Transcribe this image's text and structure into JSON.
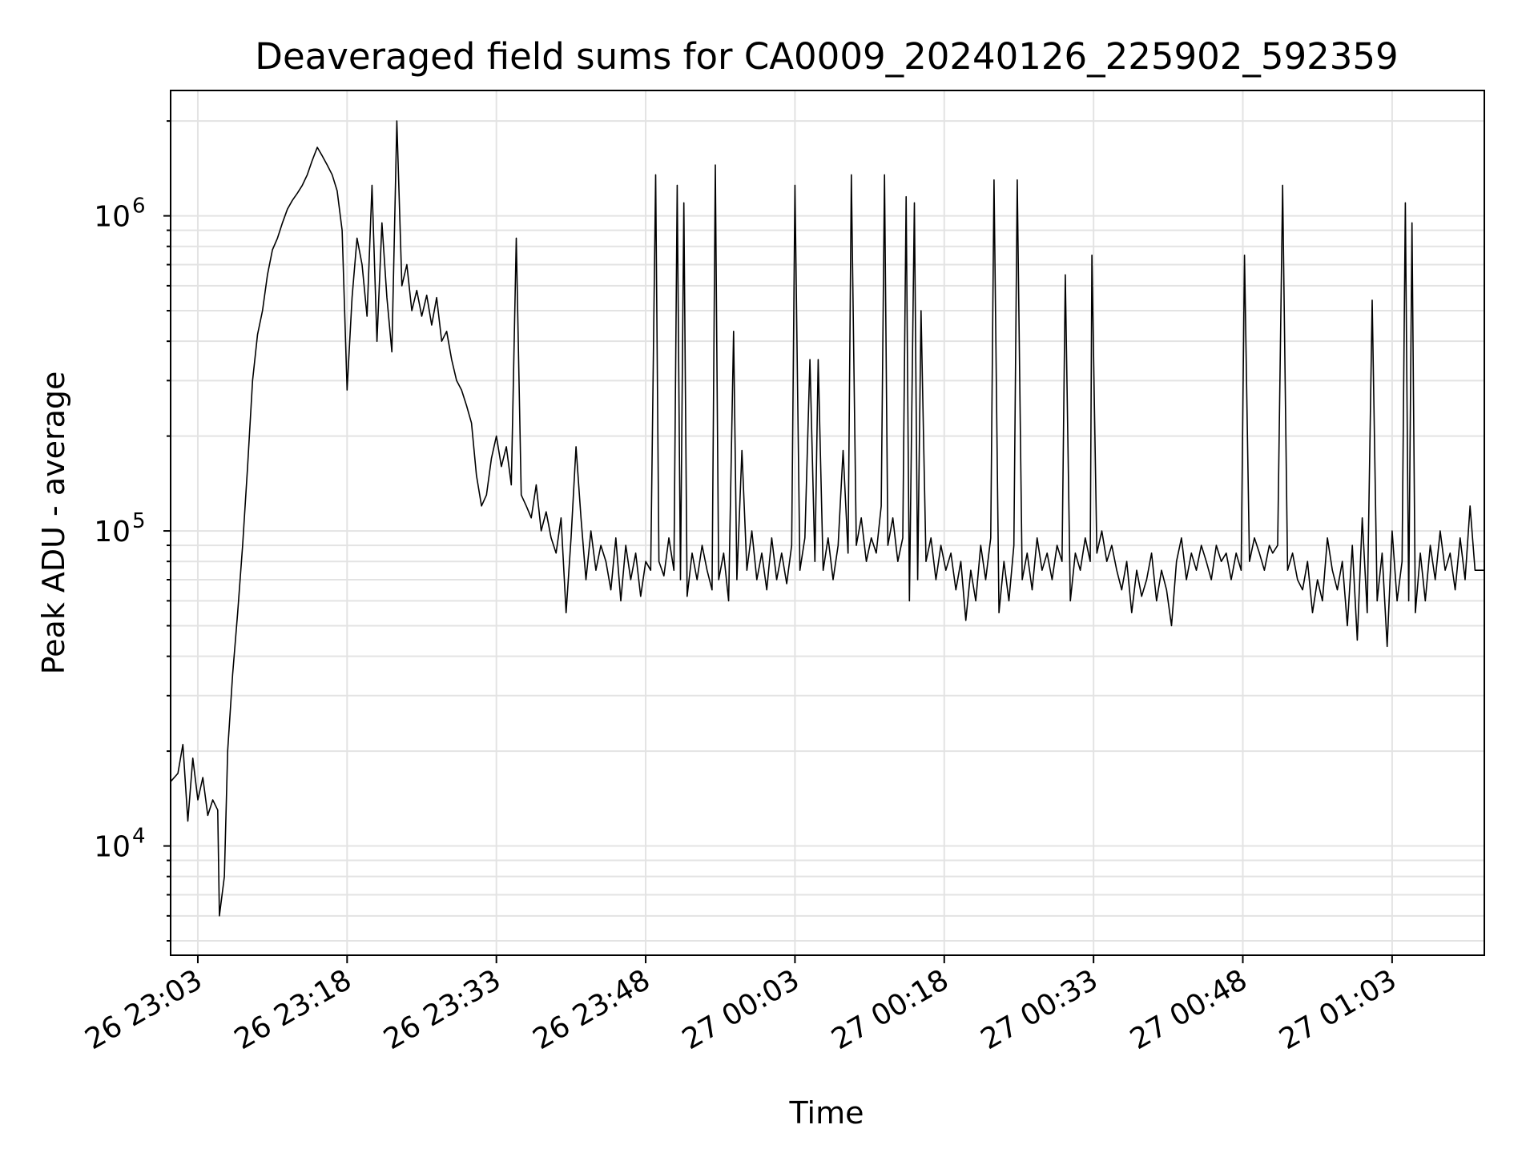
{
  "chart_data": {
    "type": "line",
    "title": "Deaveraged field sums for CA0009_20240126_225902_592359",
    "xlabel": "Time",
    "ylabel": "Peak ADU - average",
    "x_ticks": [
      "26 23:03",
      "26 23:18",
      "26 23:33",
      "26 23:48",
      "27 00:03",
      "27 00:18",
      "27 00:33",
      "27 00:48",
      "27 01:03"
    ],
    "y_scale": "log",
    "y_ticks": [
      {
        "base": "10",
        "exp": "4",
        "value": 10000
      },
      {
        "base": "10",
        "exp": "5",
        "value": 100000
      },
      {
        "base": "10",
        "exp": "6",
        "value": 1000000
      }
    ],
    "xlim": [
      "2024-01-26 23:00:16",
      "2024-01-27 01:12:16"
    ],
    "ylim": [
      4500,
      2500000
    ],
    "grid": true,
    "line_color": "#000000",
    "series": [
      {
        "points": [
          [
            "23:00:16",
            16000
          ],
          [
            "23:01:00",
            17000
          ],
          [
            "23:01:30",
            21000
          ],
          [
            "23:02:00",
            12000
          ],
          [
            "23:02:30",
            19000
          ],
          [
            "23:03:00",
            14000
          ],
          [
            "23:03:30",
            16500
          ],
          [
            "23:04:00",
            12500
          ],
          [
            "23:04:30",
            14000
          ],
          [
            "23:05:00",
            13000
          ],
          [
            "23:05:10",
            6000
          ],
          [
            "23:05:40",
            8000
          ],
          [
            "23:06:00",
            20000
          ],
          [
            "23:06:30",
            35000
          ],
          [
            "23:07:00",
            55000
          ],
          [
            "23:07:30",
            90000
          ],
          [
            "23:08:00",
            160000
          ],
          [
            "23:08:30",
            300000
          ],
          [
            "23:09:00",
            420000
          ],
          [
            "23:09:30",
            500000
          ],
          [
            "23:10:00",
            650000
          ],
          [
            "23:10:30",
            780000
          ],
          [
            "23:11:00",
            850000
          ],
          [
            "23:11:30",
            950000
          ],
          [
            "23:12:00",
            1050000
          ],
          [
            "23:12:30",
            1120000
          ],
          [
            "23:13:00",
            1180000
          ],
          [
            "23:13:30",
            1250000
          ],
          [
            "23:14:00",
            1350000
          ],
          [
            "23:14:30",
            1500000
          ],
          [
            "23:15:00",
            1650000
          ],
          [
            "23:15:30",
            1550000
          ],
          [
            "23:16:00",
            1450000
          ],
          [
            "23:16:30",
            1350000
          ],
          [
            "23:17:00",
            1200000
          ],
          [
            "23:17:30",
            900000
          ],
          [
            "23:18:00",
            280000
          ],
          [
            "23:18:30",
            550000
          ],
          [
            "23:19:00",
            850000
          ],
          [
            "23:19:30",
            700000
          ],
          [
            "23:20:00",
            480000
          ],
          [
            "23:20:30",
            1250000
          ],
          [
            "23:21:00",
            400000
          ],
          [
            "23:21:30",
            950000
          ],
          [
            "23:22:00",
            550000
          ],
          [
            "23:22:30",
            370000
          ],
          [
            "23:23:00",
            2000000
          ],
          [
            "23:23:30",
            600000
          ],
          [
            "23:24:00",
            700000
          ],
          [
            "23:24:30",
            500000
          ],
          [
            "23:25:00",
            580000
          ],
          [
            "23:25:30",
            480000
          ],
          [
            "23:26:00",
            560000
          ],
          [
            "23:26:30",
            450000
          ],
          [
            "23:27:00",
            550000
          ],
          [
            "23:27:30",
            400000
          ],
          [
            "23:28:00",
            430000
          ],
          [
            "23:28:30",
            350000
          ],
          [
            "23:29:00",
            300000
          ],
          [
            "23:29:30",
            280000
          ],
          [
            "23:30:00",
            250000
          ],
          [
            "23:30:30",
            220000
          ],
          [
            "23:31:00",
            150000
          ],
          [
            "23:31:30",
            120000
          ],
          [
            "23:32:00",
            130000
          ],
          [
            "23:32:30",
            170000
          ],
          [
            "23:33:00",
            200000
          ],
          [
            "23:33:30",
            160000
          ],
          [
            "23:34:00",
            185000
          ],
          [
            "23:34:30",
            140000
          ],
          [
            "23:35:00",
            850000
          ],
          [
            "23:35:30",
            130000
          ],
          [
            "23:36:00",
            120000
          ],
          [
            "23:36:30",
            110000
          ],
          [
            "23:37:00",
            140000
          ],
          [
            "23:37:30",
            100000
          ],
          [
            "23:38:00",
            115000
          ],
          [
            "23:38:30",
            95000
          ],
          [
            "23:39:00",
            85000
          ],
          [
            "23:39:30",
            110000
          ],
          [
            "23:40:00",
            55000
          ],
          [
            "23:40:30",
            95000
          ],
          [
            "23:41:00",
            185000
          ],
          [
            "23:41:30",
            110000
          ],
          [
            "23:42:00",
            70000
          ],
          [
            "23:42:30",
            100000
          ],
          [
            "23:43:00",
            75000
          ],
          [
            "23:43:30",
            90000
          ],
          [
            "23:44:00",
            80000
          ],
          [
            "23:44:30",
            65000
          ],
          [
            "23:45:00",
            95000
          ],
          [
            "23:45:30",
            60000
          ],
          [
            "23:46:00",
            90000
          ],
          [
            "23:46:30",
            70000
          ],
          [
            "23:47:00",
            85000
          ],
          [
            "23:47:30",
            62000
          ],
          [
            "23:48:00",
            80000
          ],
          [
            "23:48:30",
            75000
          ],
          [
            "23:49:00",
            1350000
          ],
          [
            "23:49:20",
            80000
          ],
          [
            "23:49:50",
            72000
          ],
          [
            "23:50:20",
            95000
          ],
          [
            "23:50:50",
            75000
          ],
          [
            "23:51:10",
            1250000
          ],
          [
            "23:51:30",
            70000
          ],
          [
            "23:51:50",
            1100000
          ],
          [
            "23:52:10",
            62000
          ],
          [
            "23:52:40",
            85000
          ],
          [
            "23:53:10",
            70000
          ],
          [
            "23:53:40",
            90000
          ],
          [
            "23:54:10",
            75000
          ],
          [
            "23:54:40",
            65000
          ],
          [
            "23:55:00",
            1450000
          ],
          [
            "23:55:20",
            70000
          ],
          [
            "23:55:50",
            85000
          ],
          [
            "23:56:20",
            60000
          ],
          [
            "23:56:50",
            430000
          ],
          [
            "23:57:10",
            70000
          ],
          [
            "23:57:40",
            180000
          ],
          [
            "23:58:10",
            75000
          ],
          [
            "23:58:40",
            100000
          ],
          [
            "23:59:10",
            70000
          ],
          [
            "23:59:40",
            85000
          ],
          [
            "00:00:10",
            65000
          ],
          [
            "00:00:40",
            95000
          ],
          [
            "00:01:10",
            70000
          ],
          [
            "00:01:40",
            85000
          ],
          [
            "00:02:10",
            68000
          ],
          [
            "00:02:40",
            90000
          ],
          [
            "00:03:00",
            1250000
          ],
          [
            "00:03:30",
            75000
          ],
          [
            "00:04:00",
            95000
          ],
          [
            "00:04:30",
            350000
          ],
          [
            "00:05:00",
            80000
          ],
          [
            "00:05:20",
            350000
          ],
          [
            "00:05:50",
            75000
          ],
          [
            "00:06:20",
            95000
          ],
          [
            "00:06:50",
            70000
          ],
          [
            "00:07:20",
            90000
          ],
          [
            "00:07:50",
            180000
          ],
          [
            "00:08:20",
            85000
          ],
          [
            "00:08:40",
            1350000
          ],
          [
            "00:09:10",
            90000
          ],
          [
            "00:09:40",
            110000
          ],
          [
            "00:10:10",
            80000
          ],
          [
            "00:10:40",
            95000
          ],
          [
            "00:11:10",
            85000
          ],
          [
            "00:11:40",
            120000
          ],
          [
            "00:12:00",
            1350000
          ],
          [
            "00:12:20",
            90000
          ],
          [
            "00:12:50",
            110000
          ],
          [
            "00:13:20",
            80000
          ],
          [
            "00:13:50",
            95000
          ],
          [
            "00:14:10",
            1150000
          ],
          [
            "00:14:30",
            60000
          ],
          [
            "00:15:00",
            1100000
          ],
          [
            "00:15:20",
            70000
          ],
          [
            "00:15:40",
            500000
          ],
          [
            "00:16:10",
            80000
          ],
          [
            "00:16:40",
            95000
          ],
          [
            "00:17:10",
            70000
          ],
          [
            "00:17:40",
            90000
          ],
          [
            "00:18:10",
            75000
          ],
          [
            "00:18:40",
            85000
          ],
          [
            "00:19:10",
            65000
          ],
          [
            "00:19:40",
            80000
          ],
          [
            "00:20:10",
            52000
          ],
          [
            "00:20:40",
            75000
          ],
          [
            "00:21:10",
            60000
          ],
          [
            "00:21:40",
            90000
          ],
          [
            "00:22:10",
            70000
          ],
          [
            "00:22:40",
            95000
          ],
          [
            "00:23:00",
            1300000
          ],
          [
            "00:23:30",
            55000
          ],
          [
            "00:24:00",
            80000
          ],
          [
            "00:24:30",
            60000
          ],
          [
            "00:25:00",
            90000
          ],
          [
            "00:25:20",
            1300000
          ],
          [
            "00:25:50",
            70000
          ],
          [
            "00:26:20",
            85000
          ],
          [
            "00:26:50",
            65000
          ],
          [
            "00:27:20",
            95000
          ],
          [
            "00:27:50",
            75000
          ],
          [
            "00:28:20",
            85000
          ],
          [
            "00:28:50",
            70000
          ],
          [
            "00:29:20",
            90000
          ],
          [
            "00:29:50",
            80000
          ],
          [
            "00:30:10",
            650000
          ],
          [
            "00:30:40",
            60000
          ],
          [
            "00:31:10",
            85000
          ],
          [
            "00:31:40",
            75000
          ],
          [
            "00:32:10",
            95000
          ],
          [
            "00:32:40",
            80000
          ],
          [
            "00:32:50",
            750000
          ],
          [
            "00:33:20",
            85000
          ],
          [
            "00:33:50",
            100000
          ],
          [
            "00:34:20",
            80000
          ],
          [
            "00:34:50",
            90000
          ],
          [
            "00:35:20",
            75000
          ],
          [
            "00:35:50",
            65000
          ],
          [
            "00:36:20",
            80000
          ],
          [
            "00:36:50",
            55000
          ],
          [
            "00:37:20",
            75000
          ],
          [
            "00:37:50",
            62000
          ],
          [
            "00:38:20",
            70000
          ],
          [
            "00:38:50",
            85000
          ],
          [
            "00:39:20",
            60000
          ],
          [
            "00:39:50",
            75000
          ],
          [
            "00:40:20",
            65000
          ],
          [
            "00:40:50",
            50000
          ],
          [
            "00:41:20",
            80000
          ],
          [
            "00:41:50",
            95000
          ],
          [
            "00:42:20",
            70000
          ],
          [
            "00:42:50",
            85000
          ],
          [
            "00:43:20",
            75000
          ],
          [
            "00:43:50",
            90000
          ],
          [
            "00:44:20",
            80000
          ],
          [
            "00:44:50",
            70000
          ],
          [
            "00:45:20",
            90000
          ],
          [
            "00:45:50",
            80000
          ],
          [
            "00:46:20",
            85000
          ],
          [
            "00:46:50",
            70000
          ],
          [
            "00:47:20",
            85000
          ],
          [
            "00:47:50",
            75000
          ],
          [
            "00:48:10",
            750000
          ],
          [
            "00:48:40",
            80000
          ],
          [
            "00:49:10",
            95000
          ],
          [
            "00:49:40",
            85000
          ],
          [
            "00:50:10",
            75000
          ],
          [
            "00:50:40",
            90000
          ],
          [
            "00:51:00",
            85000
          ],
          [
            "00:51:30",
            90000
          ],
          [
            "00:52:00",
            1250000
          ],
          [
            "00:52:30",
            75000
          ],
          [
            "00:53:00",
            85000
          ],
          [
            "00:53:30",
            70000
          ],
          [
            "00:54:00",
            65000
          ],
          [
            "00:54:30",
            80000
          ],
          [
            "00:55:00",
            55000
          ],
          [
            "00:55:30",
            70000
          ],
          [
            "00:56:00",
            60000
          ],
          [
            "00:56:30",
            95000
          ],
          [
            "00:57:00",
            75000
          ],
          [
            "00:57:30",
            65000
          ],
          [
            "00:58:00",
            80000
          ],
          [
            "00:58:30",
            50000
          ],
          [
            "00:59:00",
            90000
          ],
          [
            "00:59:30",
            45000
          ],
          [
            "01:00:00",
            110000
          ],
          [
            "01:00:30",
            55000
          ],
          [
            "01:01:00",
            540000
          ],
          [
            "01:01:30",
            60000
          ],
          [
            "01:02:00",
            85000
          ],
          [
            "01:02:30",
            43000
          ],
          [
            "01:03:00",
            100000
          ],
          [
            "01:03:30",
            60000
          ],
          [
            "01:04:00",
            80000
          ],
          [
            "01:04:20",
            1100000
          ],
          [
            "01:04:40",
            60000
          ],
          [
            "01:05:00",
            950000
          ],
          [
            "01:05:20",
            55000
          ],
          [
            "01:05:50",
            85000
          ],
          [
            "01:06:20",
            60000
          ],
          [
            "01:06:50",
            90000
          ],
          [
            "01:07:20",
            70000
          ],
          [
            "01:07:50",
            100000
          ],
          [
            "01:08:20",
            75000
          ],
          [
            "01:08:50",
            85000
          ],
          [
            "01:09:20",
            65000
          ],
          [
            "01:09:50",
            95000
          ],
          [
            "01:10:20",
            70000
          ],
          [
            "01:10:50",
            120000
          ],
          [
            "01:11:20",
            75000
          ],
          [
            "01:12:16",
            75000
          ]
        ]
      }
    ]
  }
}
